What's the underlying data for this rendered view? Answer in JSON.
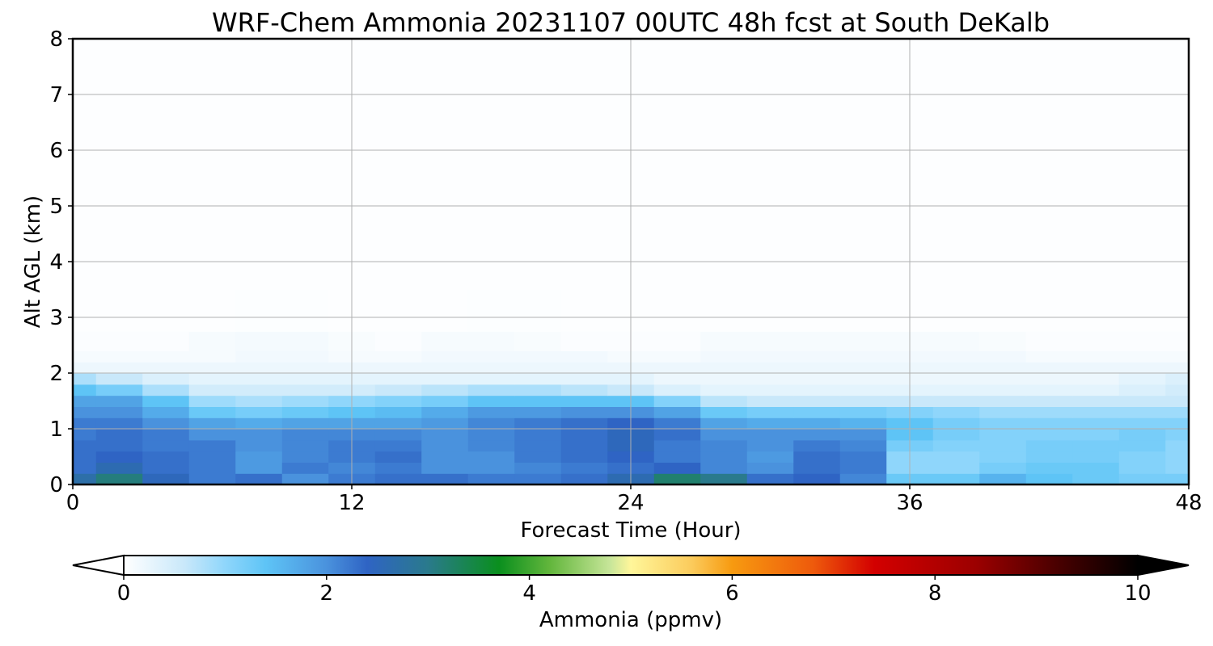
{
  "chart_data": {
    "type": "heatmap",
    "title": "WRF-Chem Ammonia  20231107 00UTC 48h fcst at South DeKalb",
    "xlabel": "Forecast Time (Hour)",
    "ylabel": "Alt AGL (km)",
    "xlim": [
      0,
      48
    ],
    "ylim": [
      0,
      8
    ],
    "xticks": [
      "0",
      "12",
      "24",
      "36",
      "48"
    ],
    "yticks": [
      "0",
      "1",
      "2",
      "3",
      "4",
      "5",
      "6",
      "7",
      "8"
    ],
    "grid": true,
    "x": [
      0,
      2,
      4,
      6,
      8,
      10,
      12,
      14,
      16,
      18,
      20,
      22,
      24,
      26,
      28,
      30,
      32,
      34,
      36,
      38,
      40,
      42,
      44,
      46,
      48
    ],
    "y": [
      0.1,
      0.3,
      0.5,
      0.7,
      0.9,
      1.1,
      1.3,
      1.5,
      1.7,
      1.9,
      2.1,
      2.3,
      2.5,
      3.0,
      4.0,
      5.0,
      6.0,
      7.0,
      8.0
    ],
    "z": [
      [
        2.7,
        3.1,
        2.5,
        2.2,
        2.3,
        2.0,
        2.2,
        2.3,
        2.3,
        2.2,
        2.2,
        2.3,
        2.6,
        3.2,
        3.0,
        2.3,
        2.4,
        2.1,
        1.3,
        1.3,
        1.6,
        1.4,
        1.3,
        1.2,
        1.2
      ],
      [
        2.3,
        2.6,
        2.3,
        2.2,
        1.9,
        2.2,
        2.1,
        2.2,
        2.0,
        2.0,
        2.1,
        2.2,
        2.3,
        2.4,
        2.1,
        2.0,
        2.3,
        2.2,
        1.0,
        1.0,
        1.2,
        1.3,
        1.3,
        1.1,
        1.0
      ],
      [
        2.3,
        2.4,
        2.3,
        2.2,
        1.9,
        2.1,
        2.2,
        2.3,
        2.0,
        2.0,
        2.2,
        2.3,
        2.4,
        2.2,
        2.1,
        1.9,
        2.3,
        2.2,
        1.0,
        1.0,
        1.1,
        1.2,
        1.2,
        1.1,
        1.0
      ],
      [
        2.3,
        2.3,
        2.2,
        2.2,
        2.0,
        2.1,
        2.2,
        2.2,
        2.0,
        2.1,
        2.2,
        2.3,
        2.5,
        2.2,
        2.1,
        2.0,
        2.2,
        2.1,
        1.2,
        1.1,
        1.1,
        1.2,
        1.2,
        1.2,
        1.0
      ],
      [
        2.2,
        2.3,
        2.2,
        2.0,
        2.0,
        2.1,
        2.1,
        2.1,
        2.0,
        2.1,
        2.2,
        2.3,
        2.5,
        2.3,
        2.0,
        2.0,
        2.0,
        2.0,
        1.4,
        1.2,
        1.1,
        1.1,
        1.1,
        1.2,
        1.1
      ],
      [
        2.2,
        2.2,
        2.0,
        1.8,
        1.7,
        1.8,
        1.8,
        1.8,
        1.9,
        2.1,
        2.2,
        2.3,
        2.4,
        2.2,
        1.8,
        1.7,
        1.7,
        1.6,
        1.4,
        1.2,
        1.1,
        1.1,
        1.1,
        1.1,
        1.1
      ],
      [
        2.0,
        2.0,
        1.7,
        1.3,
        1.2,
        1.3,
        1.4,
        1.5,
        1.7,
        1.9,
        1.9,
        2.0,
        2.0,
        1.8,
        1.3,
        1.2,
        1.2,
        1.2,
        1.1,
        1.0,
        0.9,
        0.9,
        0.9,
        0.9,
        0.9
      ],
      [
        1.8,
        1.8,
        1.4,
        0.9,
        0.8,
        0.9,
        1.0,
        1.1,
        1.2,
        1.4,
        1.4,
        1.4,
        1.4,
        1.1,
        0.7,
        0.6,
        0.6,
        0.6,
        0.6,
        0.6,
        0.6,
        0.6,
        0.6,
        0.6,
        0.6
      ],
      [
        1.4,
        1.2,
        0.8,
        0.5,
        0.5,
        0.5,
        0.5,
        0.6,
        0.7,
        0.8,
        0.8,
        0.7,
        0.6,
        0.4,
        0.3,
        0.3,
        0.3,
        0.3,
        0.3,
        0.3,
        0.3,
        0.3,
        0.3,
        0.4,
        0.5
      ],
      [
        0.8,
        0.6,
        0.4,
        0.3,
        0.3,
        0.3,
        0.3,
        0.3,
        0.3,
        0.3,
        0.3,
        0.3,
        0.3,
        0.2,
        0.2,
        0.2,
        0.2,
        0.2,
        0.2,
        0.2,
        0.2,
        0.2,
        0.2,
        0.3,
        0.4
      ],
      [
        0.2,
        0.2,
        0.2,
        0.2,
        0.2,
        0.2,
        0.2,
        0.2,
        0.2,
        0.2,
        0.2,
        0.2,
        0.2,
        0.2,
        0.2,
        0.2,
        0.2,
        0.2,
        0.2,
        0.2,
        0.2,
        0.2,
        0.2,
        0.2,
        0.2
      ],
      [
        0.1,
        0.1,
        0.1,
        0.1,
        0.15,
        0.15,
        0.1,
        0.1,
        0.15,
        0.15,
        0.15,
        0.15,
        0.1,
        0.1,
        0.15,
        0.15,
        0.15,
        0.15,
        0.15,
        0.15,
        0.15,
        0.1,
        0.1,
        0.1,
        0.1
      ],
      [
        0.05,
        0.05,
        0.05,
        0.1,
        0.12,
        0.12,
        0.08,
        0.05,
        0.1,
        0.1,
        0.08,
        0.05,
        0.05,
        0.05,
        0.1,
        0.1,
        0.1,
        0.1,
        0.1,
        0.1,
        0.08,
        0.05,
        0.05,
        0.05,
        0.05
      ],
      [
        0.02,
        0.02,
        0.02,
        0.02,
        0.03,
        0.03,
        0.02,
        0.02,
        0.02,
        0.03,
        0.03,
        0.02,
        0.02,
        0.02,
        0.02,
        0.02,
        0.02,
        0.02,
        0.02,
        0.02,
        0.02,
        0.02,
        0.02,
        0.02,
        0.02
      ],
      [
        0.02,
        0.02,
        0.02,
        0.02,
        0.02,
        0.02,
        0.02,
        0.02,
        0.02,
        0.02,
        0.02,
        0.02,
        0.02,
        0.02,
        0.02,
        0.02,
        0.02,
        0.02,
        0.02,
        0.02,
        0.02,
        0.02,
        0.02,
        0.02,
        0.02
      ],
      [
        0.02,
        0.02,
        0.02,
        0.02,
        0.02,
        0.02,
        0.02,
        0.02,
        0.02,
        0.02,
        0.02,
        0.02,
        0.02,
        0.02,
        0.02,
        0.02,
        0.02,
        0.02,
        0.02,
        0.02,
        0.02,
        0.02,
        0.02,
        0.02,
        0.02
      ],
      [
        0.02,
        0.02,
        0.02,
        0.02,
        0.02,
        0.02,
        0.02,
        0.02,
        0.02,
        0.02,
        0.02,
        0.02,
        0.02,
        0.02,
        0.02,
        0.02,
        0.02,
        0.02,
        0.02,
        0.02,
        0.02,
        0.02,
        0.02,
        0.02,
        0.02
      ],
      [
        0.02,
        0.02,
        0.02,
        0.02,
        0.02,
        0.02,
        0.02,
        0.02,
        0.02,
        0.02,
        0.02,
        0.02,
        0.02,
        0.02,
        0.02,
        0.02,
        0.02,
        0.02,
        0.02,
        0.02,
        0.02,
        0.02,
        0.02,
        0.02,
        0.02
      ],
      [
        0.02,
        0.02,
        0.02,
        0.02,
        0.02,
        0.02,
        0.02,
        0.02,
        0.02,
        0.02,
        0.02,
        0.02,
        0.02,
        0.02,
        0.02,
        0.02,
        0.02,
        0.02,
        0.02,
        0.02,
        0.02,
        0.02,
        0.02,
        0.02,
        0.02
      ]
    ],
    "colorbar": {
      "label": "Ammonia  (ppmv)",
      "range": [
        0,
        10
      ],
      "ticks": [
        "0",
        "2",
        "4",
        "6",
        "8",
        "10"
      ],
      "extend": "both",
      "stops": [
        {
          "v": 0,
          "c": "#ffffff"
        },
        {
          "v": 0.6,
          "c": "#c9e8fa"
        },
        {
          "v": 1.0,
          "c": "#8fd6fb"
        },
        {
          "v": 1.4,
          "c": "#5ec4f6"
        },
        {
          "v": 2.0,
          "c": "#4a92dd"
        },
        {
          "v": 2.4,
          "c": "#2f64c4"
        },
        {
          "v": 3.0,
          "c": "#2a7a8c"
        },
        {
          "v": 3.7,
          "c": "#0a8f1e"
        },
        {
          "v": 4.2,
          "c": "#62b63c"
        },
        {
          "v": 4.8,
          "c": "#c8e69a"
        },
        {
          "v": 5.0,
          "c": "#fff69a"
        },
        {
          "v": 5.6,
          "c": "#fbcb5c"
        },
        {
          "v": 6.0,
          "c": "#f79a10"
        },
        {
          "v": 6.8,
          "c": "#ee5a0c"
        },
        {
          "v": 7.4,
          "c": "#d30000"
        },
        {
          "v": 8.4,
          "c": "#9c0000"
        },
        {
          "v": 9.2,
          "c": "#4a0000"
        },
        {
          "v": 10,
          "c": "#000000"
        }
      ]
    }
  }
}
